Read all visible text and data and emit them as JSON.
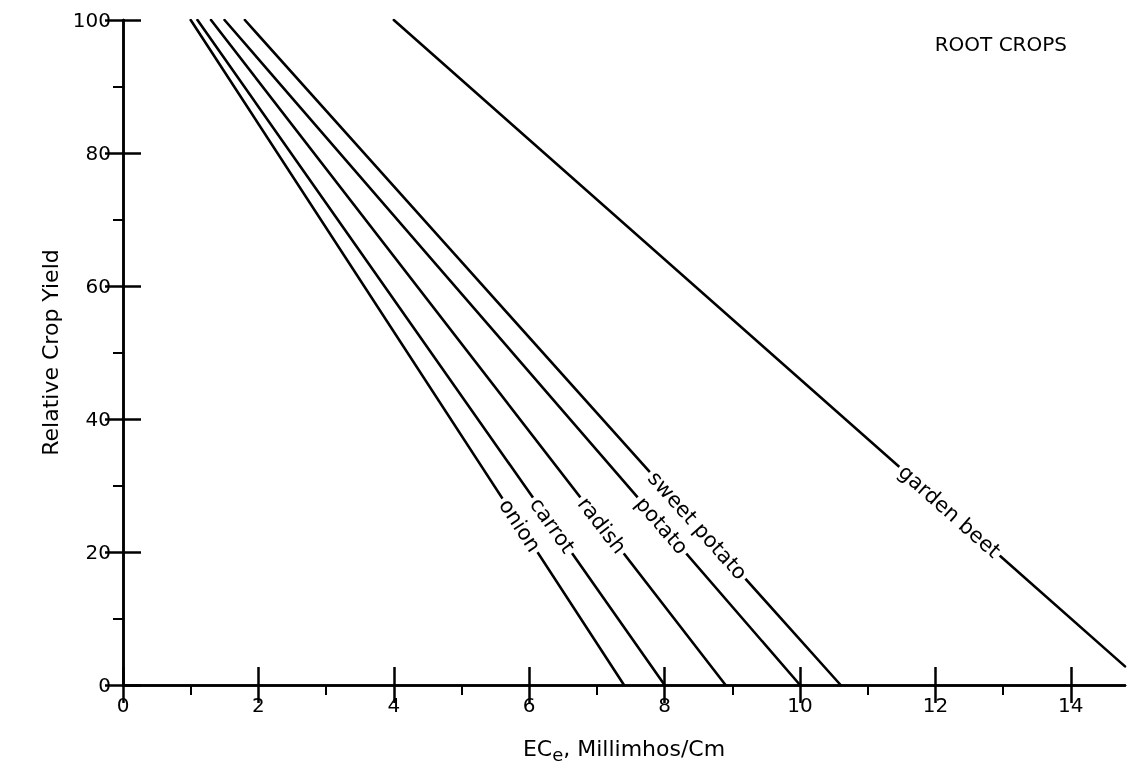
{
  "chart_data": {
    "type": "line",
    "xlabel": "EC$_{e}$, Millimhos/Cm",
    "ylabel": "Relative Crop Yield",
    "annotations": [
      "ROOT CROPS"
    ],
    "xlim": [
      0,
      14.8
    ],
    "xticks": [
      0,
      2,
      4,
      6,
      8,
      10,
      12,
      14
    ],
    "ylim": [
      0,
      100
    ],
    "yticks": [
      0,
      20,
      40,
      60,
      80,
      100
    ],
    "grid": false,
    "legend": false,
    "marker": "none",
    "line_style": "solid",
    "series": [
      {
        "name": "onion",
        "color": "#000000",
        "x": [
          1.0,
          7.4
        ],
        "values": [
          100,
          0
        ]
      },
      {
        "name": "carrot",
        "color": "#000000",
        "x": [
          1.1,
          8.0
        ],
        "values": [
          100,
          0
        ]
      },
      {
        "name": "radish",
        "color": "#000000",
        "x": [
          1.3,
          8.9
        ],
        "values": [
          100,
          0
        ]
      },
      {
        "name": "potato",
        "color": "#000000",
        "x": [
          1.5,
          10.0
        ],
        "values": [
          100,
          0
        ]
      },
      {
        "name": "sweet potato",
        "color": "#000000",
        "x": [
          1.8,
          10.6
        ],
        "values": [
          100,
          0
        ]
      },
      {
        "name": "garden beet",
        "color": "#000000",
        "x": [
          4.0,
          14.8
        ],
        "values": [
          100,
          2.8
        ]
      }
    ]
  }
}
